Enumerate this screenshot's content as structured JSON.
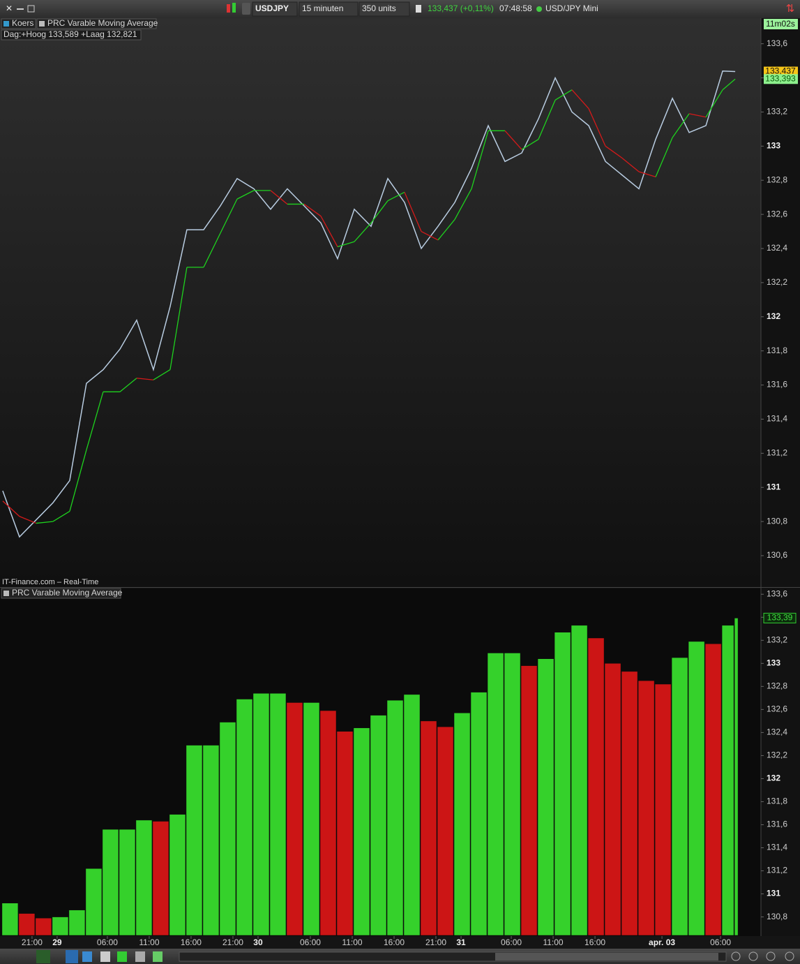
{
  "toolbar": {
    "symbol": "USDJPY",
    "interval": "15 minuten",
    "units": "350 units",
    "quote": "133,437 (+0,11%)",
    "time": "07:48:58",
    "instrument": "USD/JPY Mini"
  },
  "legend": {
    "price": "Koers",
    "indicator": "PRC Varable Moving Average",
    "day_range": "Dag:+Hoog 133,589 +Laag 132,821",
    "source": "IT-Finance.com – Real-Time",
    "countdown": "11m02s"
  },
  "chart_data": [
    {
      "type": "line",
      "x": [
        0,
        8,
        16,
        24,
        32,
        40,
        48,
        56,
        64,
        72,
        80,
        88,
        96,
        104,
        112,
        120,
        128,
        136,
        144,
        152,
        160,
        168,
        176,
        184,
        192,
        200,
        208,
        216,
        224,
        232,
        240,
        248,
        256,
        264,
        272,
        280,
        288,
        296,
        304,
        312,
        320,
        328,
        336,
        344,
        350
      ],
      "series": [
        {
          "name": "Koers",
          "color": "#b9cde2",
          "values": [
            130.98,
            130.71,
            130.81,
            130.91,
            131.04,
            131.61,
            131.69,
            131.81,
            131.98,
            131.69,
            132.06,
            132.51,
            132.51,
            132.65,
            132.81,
            132.75,
            132.63,
            132.75,
            132.65,
            132.55,
            132.34,
            132.63,
            132.53,
            132.81,
            132.67,
            132.4,
            132.53,
            132.67,
            132.87,
            133.12,
            132.91,
            132.96,
            133.16,
            133.4,
            133.2,
            133.12,
            132.91,
            132.83,
            132.75,
            133.04,
            133.28,
            133.08,
            133.12,
            133.44,
            133.437
          ],
          "value_labels": [
            null,
            null,
            null,
            null,
            null,
            null,
            null,
            null,
            null,
            null,
            null,
            null,
            null,
            null,
            null,
            null,
            null,
            null,
            null,
            null,
            null,
            null,
            null,
            null,
            null,
            null,
            null,
            null,
            null,
            null,
            null,
            null,
            null,
            null,
            null,
            null,
            null,
            null,
            null,
            null,
            null,
            null,
            null,
            null,
            "133,437"
          ]
        },
        {
          "name": "PRC Varable Moving Average",
          "color": "#1ed21e",
          "down_color": "#d41a1a",
          "values": [
            130.92,
            130.83,
            130.79,
            130.8,
            130.86,
            131.22,
            131.56,
            131.56,
            131.64,
            131.63,
            131.69,
            132.29,
            132.29,
            132.49,
            132.69,
            132.74,
            132.74,
            132.66,
            132.66,
            132.59,
            132.41,
            132.44,
            132.55,
            132.68,
            132.73,
            132.5,
            132.45,
            132.57,
            132.75,
            133.09,
            133.09,
            132.98,
            133.04,
            133.27,
            133.33,
            133.22,
            133.0,
            132.93,
            132.85,
            132.82,
            133.05,
            133.19,
            133.17,
            133.33,
            133.393
          ],
          "value_labels": [
            null,
            null,
            null,
            null,
            null,
            null,
            null,
            null,
            null,
            null,
            null,
            null,
            null,
            null,
            null,
            null,
            null,
            null,
            null,
            null,
            null,
            null,
            null,
            null,
            null,
            null,
            null,
            null,
            null,
            null,
            null,
            null,
            null,
            null,
            null,
            null,
            null,
            null,
            null,
            null,
            null,
            null,
            null,
            null,
            "133,393"
          ]
        }
      ],
      "xlim": [
        -1.3,
        362.3
      ],
      "xticks": [
        {
          "value": 14,
          "label": "21:00"
        },
        {
          "value": 26,
          "label": "29"
        },
        {
          "value": 50,
          "label": "06:00"
        },
        {
          "value": 70,
          "label": "11:00"
        },
        {
          "value": 90,
          "label": "16:00"
        },
        {
          "value": 110,
          "label": "21:00"
        },
        {
          "value": 122,
          "label": "30"
        },
        {
          "value": 147,
          "label": "06:00"
        },
        {
          "value": 167,
          "label": "11:00"
        },
        {
          "value": 187,
          "label": "16:00"
        },
        {
          "value": 207,
          "label": "21:00"
        },
        {
          "value": 219,
          "label": "31"
        },
        {
          "value": 243,
          "label": "06:00"
        },
        {
          "value": 263,
          "label": "11:00"
        },
        {
          "value": 283,
          "label": "16:00"
        },
        {
          "value": 315,
          "label": "apr. 03"
        },
        {
          "value": 343,
          "label": "06:00"
        }
      ],
      "ylim": [
        130.42,
        133.75
      ],
      "yticks": [
        {
          "value": 130.6,
          "label": "130,6"
        },
        {
          "value": 130.8,
          "label": "130,8"
        },
        131,
        {
          "value": 131.2,
          "label": "131,2"
        },
        {
          "value": 131.4,
          "label": "131,4"
        },
        {
          "value": 131.6,
          "label": "131,6"
        },
        {
          "value": 131.8,
          "label": "131,8"
        },
        132,
        {
          "value": 132.2,
          "label": "132,2"
        },
        {
          "value": 132.4,
          "label": "132,4"
        },
        {
          "value": 132.6,
          "label": "132,6"
        },
        {
          "value": 132.8,
          "label": "132,8"
        },
        133,
        {
          "value": 133.2,
          "label": "133,2"
        },
        {
          "value": 133.4,
          "label": "133,4"
        },
        {
          "value": 133.6,
          "label": "133,6"
        }
      ],
      "grid": false
    },
    {
      "type": "bar",
      "title": "PRC Varable Moving Average",
      "color": "#35d12b",
      "down_color": "#cc1515",
      "last_label": "133,39",
      "ylim": [
        130.64,
        133.65
      ],
      "yticks": [
        {
          "value": 130.8,
          "label": "130,8"
        },
        131,
        {
          "value": 131.2,
          "label": "131,2"
        },
        {
          "value": 131.4,
          "label": "131,4"
        },
        {
          "value": 131.6,
          "label": "131,6"
        },
        {
          "value": 131.8,
          "label": "131,8"
        },
        132,
        {
          "value": 132.2,
          "label": "132,2"
        },
        {
          "value": 132.4,
          "label": "132,4"
        },
        {
          "value": 132.6,
          "label": "132,6"
        },
        {
          "value": 132.8,
          "label": "132,8"
        },
        133,
        {
          "value": 133.2,
          "label": "133,2"
        },
        {
          "value": 133.4,
          "label": "133,4"
        },
        {
          "value": 133.6,
          "label": "133,6"
        }
      ],
      "grid": false
    }
  ]
}
